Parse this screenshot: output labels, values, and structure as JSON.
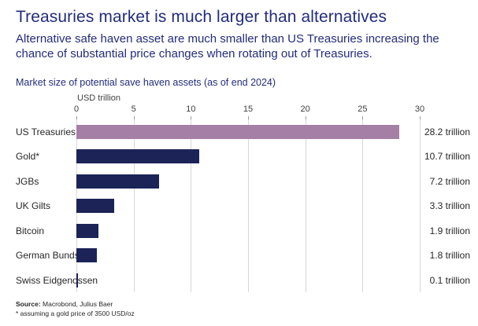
{
  "header": {
    "title": "Treasuries market is much larger than alternatives",
    "subtitle": "Alternative safe haven asset are much smaller than US Treasuries increasing the chance of substantial price changes when rotating out of Treasuries."
  },
  "chart": {
    "title": "Market size of potential save haven assets (as of end 2024)",
    "unit_label": "USD trillion"
  },
  "chart_data": {
    "type": "bar",
    "orientation": "horizontal",
    "title": "Market size of potential save haven assets (as of end 2024)",
    "xlabel": "USD trillion",
    "categories": [
      "US Treasuries",
      "Gold*",
      "JGBs",
      "UK Gilts",
      "Bitcoin",
      "German Bunds",
      "Swiss Eidgenossen"
    ],
    "values": [
      28.2,
      10.7,
      7.2,
      3.3,
      1.9,
      1.8,
      0.1
    ],
    "value_labels": [
      "28.2 trillion",
      "10.7 trillion",
      "7.2 trillion",
      "3.3 trillion",
      "1.9 trillion",
      "1.8 trillion",
      "0.1 trillion"
    ],
    "axis": {
      "min": 0,
      "max": 30,
      "tick_step": 5,
      "ticks": [
        0,
        5,
        10,
        15,
        20,
        25,
        30
      ]
    },
    "grid": true,
    "legend": false,
    "colors": {
      "highlight_bar": "#A57FA5",
      "default_bar": "#1B2357",
      "highlight_index": 0
    }
  },
  "footer": {
    "source_label": "Source:",
    "source_text": "Macrobond, Julius Baer",
    "footnote": "* assuming a gold price of 3500 USD/oz"
  },
  "colors": {
    "heading": "#232C7C",
    "text": "#262626",
    "gridline": "#d8d8d8"
  }
}
